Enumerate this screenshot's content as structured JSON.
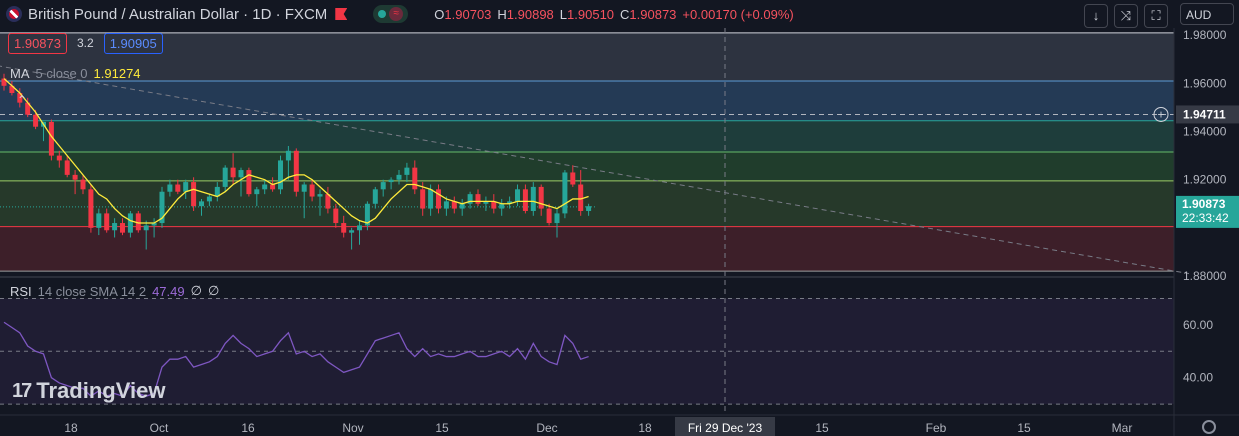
{
  "header": {
    "title": "British Pound / Australian Dollar · 1D · FXCM",
    "ohlc": {
      "o_label": "O",
      "o": "1.90703",
      "h_label": "H",
      "h": "1.90898",
      "l_label": "L",
      "l": "1.90510",
      "c_label": "C",
      "c": "1.90873",
      "change": "+0.00170 (+0.09%)"
    },
    "currency": "AUD",
    "icons": [
      "arrow-down-icon",
      "collapse-icon",
      "fullscreen-icon"
    ]
  },
  "quote": {
    "sell": "1.90873",
    "spread": "3.2",
    "buy": "1.90905"
  },
  "legends": {
    "ma": {
      "name": "MA",
      "params": "5 close 0",
      "value": "1.91274"
    },
    "rsi": {
      "name": "RSI",
      "params": "14 close SMA 14 2",
      "value": "47.49",
      "v2": "∅",
      "v3": "∅"
    }
  },
  "brand": "TradingView",
  "colors": {
    "up": "#26a69a",
    "down": "#f23645",
    "ma": "#ffeb3b",
    "rsi": "#7e57c2",
    "bg": "#131722",
    "grid": "#2a2e39"
  },
  "chart_data": {
    "type": "candlestick",
    "price_axis": {
      "ticks": [
        "1.98000",
        "1.96000",
        "1.94000",
        "1.92000",
        "1.88000"
      ],
      "ylim": [
        1.88,
        1.983
      ]
    },
    "price_labels": {
      "crosshair": "1.94711",
      "last": "1.90873",
      "countdown": "22:33:42"
    },
    "x_ticks": [
      "18",
      "Oct",
      "16",
      "Nov",
      "15",
      "Dec",
      "18",
      "Fri 29 Dec '23",
      "15",
      "Feb",
      "15",
      "Mar"
    ],
    "candles": [
      {
        "o": 1.962,
        "h": 1.964,
        "l": 1.957,
        "c": 1.959
      },
      {
        "o": 1.959,
        "h": 1.961,
        "l": 1.955,
        "c": 1.956
      },
      {
        "o": 1.956,
        "h": 1.958,
        "l": 1.95,
        "c": 1.952
      },
      {
        "o": 1.952,
        "h": 1.954,
        "l": 1.946,
        "c": 1.947
      },
      {
        "o": 1.947,
        "h": 1.949,
        "l": 1.941,
        "c": 1.942
      },
      {
        "o": 1.942,
        "h": 1.944,
        "l": 1.936,
        "c": 1.944
      },
      {
        "o": 1.944,
        "h": 1.945,
        "l": 1.928,
        "c": 1.93
      },
      {
        "o": 1.93,
        "h": 1.932,
        "l": 1.925,
        "c": 1.928
      },
      {
        "o": 1.928,
        "h": 1.93,
        "l": 1.921,
        "c": 1.922
      },
      {
        "o": 1.922,
        "h": 1.924,
        "l": 1.914,
        "c": 1.92
      },
      {
        "o": 1.92,
        "h": 1.922,
        "l": 1.914,
        "c": 1.916
      },
      {
        "o": 1.916,
        "h": 1.918,
        "l": 1.898,
        "c": 1.9
      },
      {
        "o": 1.9,
        "h": 1.908,
        "l": 1.897,
        "c": 1.906
      },
      {
        "o": 1.906,
        "h": 1.908,
        "l": 1.898,
        "c": 1.899
      },
      {
        "o": 1.899,
        "h": 1.904,
        "l": 1.896,
        "c": 1.902
      },
      {
        "o": 1.902,
        "h": 1.904,
        "l": 1.897,
        "c": 1.898
      },
      {
        "o": 1.898,
        "h": 1.907,
        "l": 1.896,
        "c": 1.906
      },
      {
        "o": 1.906,
        "h": 1.907,
        "l": 1.898,
        "c": 1.899
      },
      {
        "o": 1.899,
        "h": 1.903,
        "l": 1.891,
        "c": 1.901
      },
      {
        "o": 1.901,
        "h": 1.904,
        "l": 1.896,
        "c": 1.902
      },
      {
        "o": 1.902,
        "h": 1.917,
        "l": 1.9,
        "c": 1.915
      },
      {
        "o": 1.915,
        "h": 1.92,
        "l": 1.913,
        "c": 1.918
      },
      {
        "o": 1.918,
        "h": 1.92,
        "l": 1.914,
        "c": 1.915
      },
      {
        "o": 1.915,
        "h": 1.92,
        "l": 1.912,
        "c": 1.919
      },
      {
        "o": 1.919,
        "h": 1.921,
        "l": 1.907,
        "c": 1.909
      },
      {
        "o": 1.909,
        "h": 1.912,
        "l": 1.905,
        "c": 1.911
      },
      {
        "o": 1.911,
        "h": 1.914,
        "l": 1.909,
        "c": 1.913
      },
      {
        "o": 1.913,
        "h": 1.919,
        "l": 1.911,
        "c": 1.917
      },
      {
        "o": 1.917,
        "h": 1.926,
        "l": 1.915,
        "c": 1.925
      },
      {
        "o": 1.925,
        "h": 1.931,
        "l": 1.918,
        "c": 1.921
      },
      {
        "o": 1.921,
        "h": 1.925,
        "l": 1.913,
        "c": 1.924
      },
      {
        "o": 1.924,
        "h": 1.925,
        "l": 1.913,
        "c": 1.914
      },
      {
        "o": 1.914,
        "h": 1.917,
        "l": 1.909,
        "c": 1.916
      },
      {
        "o": 1.916,
        "h": 1.92,
        "l": 1.914,
        "c": 1.918
      },
      {
        "o": 1.918,
        "h": 1.921,
        "l": 1.915,
        "c": 1.916
      },
      {
        "o": 1.916,
        "h": 1.93,
        "l": 1.914,
        "c": 1.928
      },
      {
        "o": 1.928,
        "h": 1.934,
        "l": 1.92,
        "c": 1.932
      },
      {
        "o": 1.932,
        "h": 1.933,
        "l": 1.913,
        "c": 1.915
      },
      {
        "o": 1.915,
        "h": 1.919,
        "l": 1.904,
        "c": 1.918
      },
      {
        "o": 1.918,
        "h": 1.92,
        "l": 1.911,
        "c": 1.913
      },
      {
        "o": 1.913,
        "h": 1.916,
        "l": 1.905,
        "c": 1.914
      },
      {
        "o": 1.914,
        "h": 1.917,
        "l": 1.906,
        "c": 1.908
      },
      {
        "o": 1.908,
        "h": 1.91,
        "l": 1.9,
        "c": 1.902
      },
      {
        "o": 1.902,
        "h": 1.905,
        "l": 1.896,
        "c": 1.898
      },
      {
        "o": 1.898,
        "h": 1.9,
        "l": 1.891,
        "c": 1.899
      },
      {
        "o": 1.899,
        "h": 1.903,
        "l": 1.893,
        "c": 1.901
      },
      {
        "o": 1.901,
        "h": 1.911,
        "l": 1.899,
        "c": 1.91
      },
      {
        "o": 1.91,
        "h": 1.917,
        "l": 1.908,
        "c": 1.916
      },
      {
        "o": 1.916,
        "h": 1.92,
        "l": 1.913,
        "c": 1.919
      },
      {
        "o": 1.919,
        "h": 1.921,
        "l": 1.916,
        "c": 1.92
      },
      {
        "o": 1.92,
        "h": 1.924,
        "l": 1.918,
        "c": 1.922
      },
      {
        "o": 1.922,
        "h": 1.927,
        "l": 1.919,
        "c": 1.925
      },
      {
        "o": 1.925,
        "h": 1.928,
        "l": 1.914,
        "c": 1.916
      },
      {
        "o": 1.916,
        "h": 1.919,
        "l": 1.905,
        "c": 1.908
      },
      {
        "o": 1.908,
        "h": 1.918,
        "l": 1.905,
        "c": 1.916
      },
      {
        "o": 1.916,
        "h": 1.918,
        "l": 1.906,
        "c": 1.908
      },
      {
        "o": 1.908,
        "h": 1.913,
        "l": 1.905,
        "c": 1.911
      },
      {
        "o": 1.911,
        "h": 1.913,
        "l": 1.906,
        "c": 1.908
      },
      {
        "o": 1.908,
        "h": 1.912,
        "l": 1.905,
        "c": 1.91
      },
      {
        "o": 1.91,
        "h": 1.915,
        "l": 1.908,
        "c": 1.914
      },
      {
        "o": 1.914,
        "h": 1.916,
        "l": 1.909,
        "c": 1.91
      },
      {
        "o": 1.91,
        "h": 1.913,
        "l": 1.907,
        "c": 1.911
      },
      {
        "o": 1.911,
        "h": 1.914,
        "l": 1.906,
        "c": 1.908
      },
      {
        "o": 1.908,
        "h": 1.912,
        "l": 1.905,
        "c": 1.91
      },
      {
        "o": 1.91,
        "h": 1.913,
        "l": 1.908,
        "c": 1.911
      },
      {
        "o": 1.911,
        "h": 1.918,
        "l": 1.909,
        "c": 1.916
      },
      {
        "o": 1.916,
        "h": 1.918,
        "l": 1.906,
        "c": 1.907
      },
      {
        "o": 1.907,
        "h": 1.919,
        "l": 1.905,
        "c": 1.917
      },
      {
        "o": 1.917,
        "h": 1.918,
        "l": 1.905,
        "c": 1.908
      },
      {
        "o": 1.908,
        "h": 1.91,
        "l": 1.901,
        "c": 1.902
      },
      {
        "o": 1.902,
        "h": 1.908,
        "l": 1.896,
        "c": 1.906
      },
      {
        "o": 1.906,
        "h": 1.924,
        "l": 1.904,
        "c": 1.923
      },
      {
        "o": 1.923,
        "h": 1.926,
        "l": 1.917,
        "c": 1.918
      },
      {
        "o": 1.918,
        "h": 1.924,
        "l": 1.905,
        "c": 1.907
      },
      {
        "o": 1.907,
        "h": 1.91,
        "l": 1.905,
        "c": 1.909
      }
    ],
    "ma": [
      1.962,
      1.959,
      1.956,
      1.952,
      1.948,
      1.943,
      1.938,
      1.934,
      1.93,
      1.926,
      1.922,
      1.918,
      1.914,
      1.912,
      1.908,
      1.905,
      1.903,
      1.902,
      1.902,
      1.902,
      1.904,
      1.908,
      1.912,
      1.915,
      1.916,
      1.915,
      1.914,
      1.913,
      1.915,
      1.918,
      1.92,
      1.922,
      1.921,
      1.92,
      1.918,
      1.919,
      1.921,
      1.922,
      1.922,
      1.92,
      1.917,
      1.914,
      1.911,
      1.908,
      1.905,
      1.903,
      1.902,
      1.904,
      1.908,
      1.912,
      1.915,
      1.918,
      1.918,
      1.917,
      1.916,
      1.914,
      1.912,
      1.911,
      1.91,
      1.911,
      1.911,
      1.911,
      1.911,
      1.91,
      1.91,
      1.911,
      1.911,
      1.911,
      1.91,
      1.909,
      1.908,
      1.91,
      1.912,
      1.912,
      1.913
    ],
    "levels": [
      {
        "y": 1.981,
        "color": "#d1d4dc"
      },
      {
        "y": 1.961,
        "color": "#5b9bd5"
      },
      {
        "y": 1.9445,
        "color": "#26a69a"
      },
      {
        "y": 1.9315,
        "color": "#66bb6a"
      },
      {
        "y": 1.9195,
        "color": "#9ccc65"
      },
      {
        "y": 1.9005,
        "color": "#f23645"
      },
      {
        "y": 1.882,
        "color": "#9e9e9e"
      }
    ],
    "zones": [
      {
        "from": 1.961,
        "to": 1.981,
        "color": "#2d3340"
      },
      {
        "from": 1.9445,
        "to": 1.961,
        "color": "#243a55"
      },
      {
        "from": 1.9315,
        "to": 1.9445,
        "color": "#1e3d3b"
      },
      {
        "from": 1.9195,
        "to": 1.9315,
        "color": "#203d2c"
      },
      {
        "from": 1.9005,
        "to": 1.9195,
        "color": "#26392a"
      },
      {
        "from": 1.882,
        "to": 1.9005,
        "color": "#3d1f29"
      }
    ],
    "trendline": {
      "start": {
        "bar": -2,
        "price": 1.968
      },
      "end": {
        "bar": 150,
        "price": 1.881
      }
    },
    "rsi": {
      "ticks": [
        "60.00",
        "40.00"
      ],
      "ylim": [
        27,
        77
      ],
      "upper": 70,
      "mid": 50,
      "lower": 30,
      "values": [
        61,
        59,
        57,
        52,
        50,
        49,
        40,
        38,
        37,
        36,
        36,
        33,
        35,
        33,
        34,
        33,
        37,
        34,
        33,
        34,
        44,
        47,
        47,
        48,
        44,
        45,
        46,
        48,
        53,
        56,
        53,
        51,
        48,
        49,
        50,
        54,
        57,
        49,
        50,
        48,
        49,
        46,
        44,
        42,
        43,
        44,
        49,
        54,
        55,
        56,
        57,
        51,
        48,
        51,
        48,
        49,
        48,
        48,
        49,
        50,
        48,
        48,
        49,
        50,
        48,
        51,
        47,
        53,
        48,
        46,
        45,
        56,
        53,
        47,
        48
      ]
    }
  }
}
